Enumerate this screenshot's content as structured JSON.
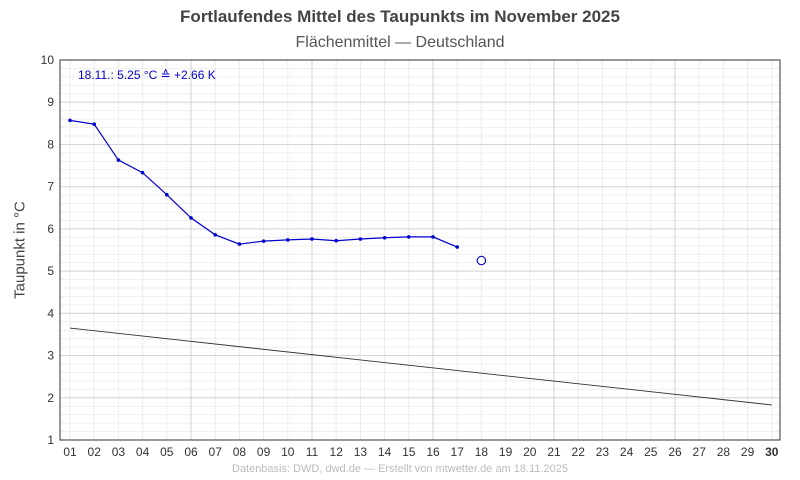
{
  "chart_data": {
    "type": "line",
    "title": "Fortlaufendes Mittel des Taupunkts im November 2025",
    "subtitle": "Flächenmittel — Deutschland",
    "ylabel": "Taupunkt in °C",
    "ylim": [
      1,
      10
    ],
    "yticks": [
      "1",
      "2",
      "3",
      "4",
      "5",
      "6",
      "7",
      "8",
      "9",
      "10"
    ],
    "x_categories": [
      "01",
      "02",
      "03",
      "04",
      "05",
      "06",
      "07",
      "08",
      "09",
      "10",
      "11",
      "12",
      "13",
      "14",
      "15",
      "16",
      "17",
      "18",
      "19",
      "20",
      "21",
      "22",
      "23",
      "24",
      "25",
      "26",
      "27",
      "28",
      "29",
      "30"
    ],
    "grid": true,
    "series": [
      {
        "role": "running-mean",
        "color": "#0000cc",
        "x": [
          1,
          2,
          3,
          4,
          5,
          6,
          7,
          8,
          9,
          10,
          11,
          12,
          13,
          14,
          15,
          16,
          17
        ],
        "values": [
          8.57,
          8.48,
          7.63,
          7.33,
          6.81,
          6.26,
          5.86,
          5.64,
          5.71,
          5.74,
          5.76,
          5.72,
          5.76,
          5.79,
          5.81,
          5.81,
          5.57
        ]
      },
      {
        "role": "reference",
        "color": "#333333",
        "x": [
          1,
          30
        ],
        "values": [
          3.65,
          1.83
        ]
      }
    ],
    "current_point": {
      "x": 18,
      "value": 5.25,
      "color": "#0000cc"
    },
    "annotation": "18.11.:  5.25 °C ≙ +2.66 K",
    "footer": "Datenbasis: DWD, dwd.de — Erstellt von mtwetter.de am 18.11.2025"
  }
}
